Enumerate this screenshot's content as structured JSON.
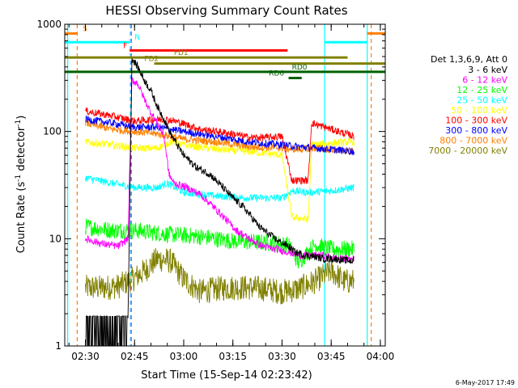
{
  "chart_data": {
    "type": "line",
    "title": "HESSI Observing Summary Count Rates",
    "xlabel": "Start Time (15-Sep-14 02:23:42)",
    "ylabel_main": "Count Rate (s",
    "ylabel_sup1": "-1",
    "ylabel_mid": " detector",
    "ylabel_sup2": "-1",
    "ylabel_end": ")",
    "yscale": "log",
    "ylim": [
      1,
      1000
    ],
    "xlim_minutes": [
      143.7,
      241.5
    ],
    "x_ticks": [
      {
        "minutes": 150,
        "label": "02:30"
      },
      {
        "minutes": 165,
        "label": "02:45"
      },
      {
        "minutes": 180,
        "label": "03:00"
      },
      {
        "minutes": 195,
        "label": "03:15"
      },
      {
        "minutes": 210,
        "label": "03:30"
      },
      {
        "minutes": 225,
        "label": "03:45"
      },
      {
        "minutes": 240,
        "label": "04:00"
      }
    ],
    "y_ticks": [
      {
        "value": 1,
        "label": "1"
      },
      {
        "value": 10,
        "label": "10"
      },
      {
        "value": 100,
        "label": "100"
      },
      {
        "value": 1000,
        "label": "1000"
      }
    ],
    "legend": {
      "placement": "right",
      "header": "Det 1,3,6,9, Att 0"
    },
    "series": [
      {
        "name": "3 - 6 keV",
        "color": "#000000",
        "points": [
          [
            163,
            1.8
          ],
          [
            164.2,
            480
          ],
          [
            166,
            400
          ],
          [
            168,
            300
          ],
          [
            170,
            240
          ],
          [
            172,
            170
          ],
          [
            174,
            130
          ],
          [
            176,
            95
          ],
          [
            178,
            75
          ],
          [
            180,
            60
          ],
          [
            184,
            46
          ],
          [
            188,
            40
          ],
          [
            192,
            30
          ],
          [
            195,
            24
          ],
          [
            198,
            20
          ],
          [
            200,
            17
          ],
          [
            203,
            13
          ],
          [
            206,
            11
          ],
          [
            209,
            9.5
          ],
          [
            212,
            8.5
          ],
          [
            214,
            7.5
          ],
          [
            217,
            7.0
          ],
          [
            220,
            6.8
          ],
          [
            223,
            6.5
          ],
          [
            226,
            6.5
          ],
          [
            229,
            6.3
          ],
          [
            232,
            6.2
          ]
        ]
      },
      {
        "name": "6 - 12 keV",
        "color": "#ff00ff",
        "points": [
          [
            150,
            10
          ],
          [
            155,
            9
          ],
          [
            160,
            8.5
          ],
          [
            163,
            10
          ],
          [
            164.2,
            300
          ],
          [
            166,
            280
          ],
          [
            168,
            200
          ],
          [
            170,
            150
          ],
          [
            172,
            120
          ],
          [
            174,
            90
          ],
          [
            175.5,
            40
          ],
          [
            177,
            33
          ],
          [
            181,
            30
          ],
          [
            185,
            26
          ],
          [
            189,
            20
          ],
          [
            193,
            15
          ],
          [
            196,
            12
          ],
          [
            200,
            10
          ],
          [
            204,
            8.5
          ],
          [
            208,
            8
          ],
          [
            212,
            7.5
          ],
          [
            215,
            7
          ],
          [
            222,
            7
          ],
          [
            227,
            6.5
          ],
          [
            232,
            6.5
          ]
        ]
      },
      {
        "name": "12 - 25 keV",
        "color": "#00ff00",
        "points": [
          [
            150,
            13
          ],
          [
            158,
            12
          ],
          [
            165,
            12
          ],
          [
            175,
            11
          ],
          [
            185,
            10.5
          ],
          [
            195,
            9.5
          ],
          [
            205,
            9.2
          ],
          [
            212,
            8.8
          ],
          [
            215,
            6
          ],
          [
            220,
            8.8
          ],
          [
            225,
            8
          ],
          [
            232,
            8
          ]
        ]
      },
      {
        "name": "25 - 50 keV",
        "color": "#00ffff",
        "points": [
          [
            150,
            37
          ],
          [
            158,
            33
          ],
          [
            165,
            30
          ],
          [
            172,
            30
          ],
          [
            175,
            33
          ],
          [
            180,
            27
          ],
          [
            190,
            25
          ],
          [
            200,
            24
          ],
          [
            205,
            24
          ],
          [
            210,
            24
          ],
          [
            213,
            28
          ],
          [
            218,
            27
          ],
          [
            225,
            28
          ],
          [
            232,
            30
          ]
        ]
      },
      {
        "name": "50 - 100 keV",
        "color": "#ffff00",
        "points": [
          [
            150,
            80
          ],
          [
            158,
            75
          ],
          [
            165,
            70
          ],
          [
            172,
            70
          ],
          [
            176,
            80
          ],
          [
            180,
            75
          ],
          [
            190,
            68
          ],
          [
            200,
            65
          ],
          [
            210,
            60
          ],
          [
            213,
            16
          ],
          [
            218,
            15
          ],
          [
            219,
            75
          ],
          [
            225,
            78
          ],
          [
            232,
            80
          ]
        ]
      },
      {
        "name": "100 - 300 keV",
        "color": "#ff0000",
        "points": [
          [
            150,
            155
          ],
          [
            158,
            140
          ],
          [
            165,
            125
          ],
          [
            172,
            130
          ],
          [
            176,
            128
          ],
          [
            180,
            118
          ],
          [
            185,
            105
          ],
          [
            190,
            100
          ],
          [
            195,
            95
          ],
          [
            200,
            88
          ],
          [
            205,
            88
          ],
          [
            210,
            90
          ],
          [
            213,
            35
          ],
          [
            218,
            35
          ],
          [
            219,
            120
          ],
          [
            225,
            105
          ],
          [
            232,
            90
          ]
        ]
      },
      {
        "name": "300 - 800 keV",
        "color": "#0000ff",
        "points": [
          [
            150,
            130
          ],
          [
            158,
            120
          ],
          [
            165,
            110
          ],
          [
            172,
            110
          ],
          [
            180,
            100
          ],
          [
            190,
            90
          ],
          [
            200,
            80
          ],
          [
            210,
            75
          ],
          [
            215,
            72
          ],
          [
            220,
            70
          ],
          [
            225,
            68
          ],
          [
            232,
            65
          ]
        ]
      },
      {
        "name": "800 - 7000 keV",
        "color": "#ff8000",
        "points": [
          [
            150,
            120
          ],
          [
            158,
            105
          ],
          [
            165,
            100
          ],
          [
            172,
            95
          ],
          [
            180,
            85
          ],
          [
            190,
            80
          ],
          [
            200,
            72
          ],
          [
            210,
            70
          ],
          [
            215,
            68
          ],
          [
            220,
            70
          ],
          [
            225,
            68
          ],
          [
            232,
            65
          ]
        ]
      },
      {
        "name": "7000 - 20000 keV",
        "color": "#808000",
        "points": [
          [
            150,
            3.5
          ],
          [
            156,
            3.5
          ],
          [
            160,
            3.6
          ],
          [
            164.5,
            4.2
          ],
          [
            168,
            5
          ],
          [
            172,
            6.5
          ],
          [
            176,
            6.2
          ],
          [
            180,
            4.2
          ],
          [
            185,
            3.2
          ],
          [
            190,
            3.4
          ],
          [
            195,
            3.5
          ],
          [
            200,
            3.5
          ],
          [
            205,
            3.4
          ],
          [
            210,
            3.2
          ],
          [
            215,
            3.4
          ],
          [
            220,
            4
          ],
          [
            225,
            5
          ],
          [
            229,
            4
          ],
          [
            232,
            4
          ]
        ]
      }
    ],
    "flags": [
      {
        "label": "S",
        "color": "#ff8000",
        "segments": [
          [
            143.7,
            147.5
          ],
          [
            236,
            241.5
          ]
        ],
        "y": 820,
        "label_at": 149.2
      },
      {
        "label": "N",
        "color": "#00ffff",
        "segments": [
          [
            143.7,
            163.5
          ],
          [
            223,
            236
          ]
        ],
        "y": 680,
        "label_at": 165
      },
      {
        "label": "F",
        "color": "#ff0000",
        "segments": [
          [
            163.5,
            211.7
          ]
        ],
        "y": 570,
        "label_at": 161.5
      },
      {
        "label": "FD1",
        "color": "#808000",
        "segments": [
          [
            143.7,
            230
          ]
        ],
        "y": 490,
        "label_at": 177
      },
      {
        "label": "FD2",
        "color": "#808000",
        "segments": [
          [
            171,
            241.5
          ]
        ],
        "y": 430,
        "label_at": 168
      },
      {
        "label": "RD0",
        "color": "#006000",
        "segments": [
          [
            143.7,
            241.5
          ]
        ],
        "y": 360,
        "label_at": 213
      },
      {
        "label": "RD6",
        "color": "#006000",
        "segments": [
          [
            212,
            216
          ]
        ],
        "y": 315,
        "label_at": 206
      }
    ],
    "vlines": [
      {
        "minutes": 144.6,
        "color": "#00ffff",
        "dashed": false
      },
      {
        "minutes": 147.5,
        "color": "#ff8000",
        "dashed": true
      },
      {
        "minutes": 163.7,
        "color": "#00ffff",
        "dashed": true
      },
      {
        "minutes": 164.0,
        "color": "#ff00ff",
        "dashed": true
      },
      {
        "minutes": 223.0,
        "color": "#00ffff",
        "dashed": false
      },
      {
        "minutes": 236.0,
        "color": "#00ffff",
        "dashed": false
      },
      {
        "minutes": 237.2,
        "color": "#ff8000",
        "dashed": true
      }
    ]
  },
  "footer_date": "6-May-2017 17:49"
}
